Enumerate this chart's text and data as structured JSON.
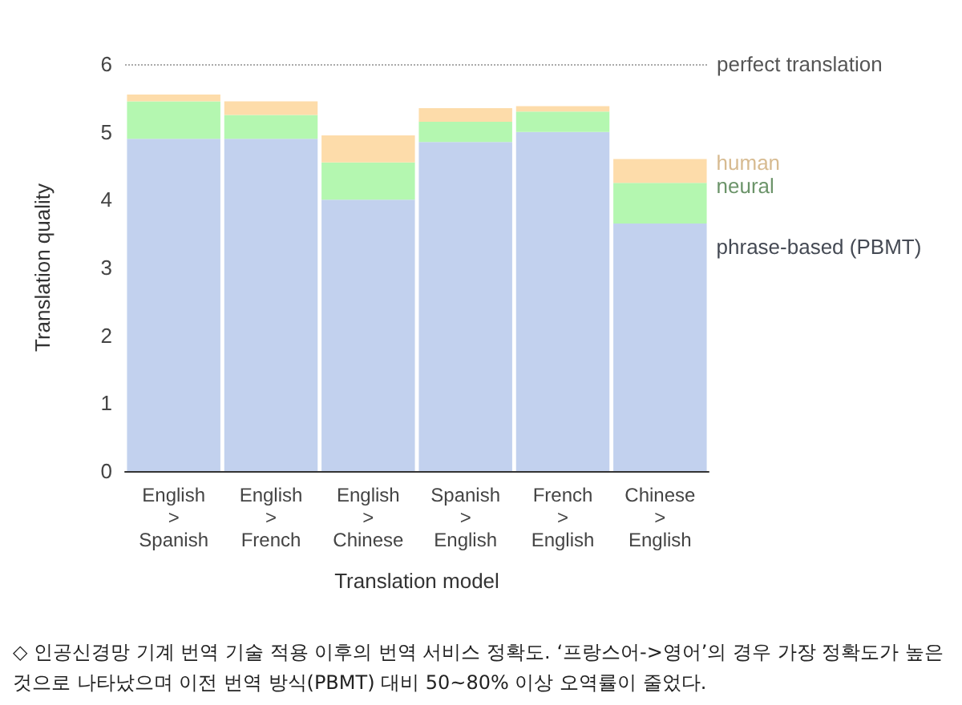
{
  "chart_data": {
    "type": "bar",
    "stacked": true,
    "xlabel": "Translation model",
    "ylabel": "Translation quality",
    "categories": [
      "English\n>\nSpanish",
      "English\n>\nFrench",
      "English\n>\nChinese",
      "Spanish\n>\nEnglish",
      "French\n>\nEnglish",
      "Chinese\n>\nEnglish"
    ],
    "series": [
      {
        "name": "phrase-based (PBMT)",
        "color": "#c2d1ee",
        "values": [
          4.9,
          4.9,
          4.0,
          4.85,
          5.0,
          3.65
        ]
      },
      {
        "name": "neural",
        "color": "#b4f7b0",
        "values": [
          0.55,
          0.35,
          0.55,
          0.3,
          0.3,
          0.6
        ]
      },
      {
        "name": "human",
        "color": "#fddcaa",
        "values": [
          0.1,
          0.2,
          0.4,
          0.2,
          0.08,
          0.35
        ]
      }
    ],
    "ylim": [
      0,
      6
    ],
    "yticks": [
      0,
      1,
      2,
      3,
      4,
      5,
      6
    ],
    "grid": false,
    "legend": false,
    "ref_lines": [
      {
        "axis": "y",
        "value": 6,
        "label": "perfect translation",
        "color": "#aaaaaa",
        "line_style": "dotted"
      }
    ],
    "annotations": [
      "◇ 인공신경망 기계 번역 기술 적용 이후의 번역 서비스 정확도. ‘프랑스어->영어’의 경우 가장 정확도가 높은 것으로 나타났으며 이전 번역 방식(PBMT) 대비 50~80% 이상 오역률이 줄었다."
    ]
  }
}
